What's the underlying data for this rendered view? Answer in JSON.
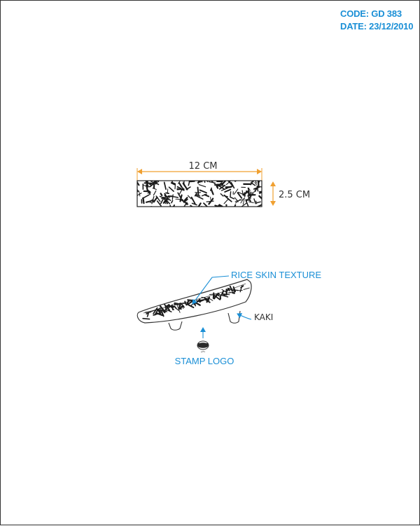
{
  "header": {
    "code": "CODE: GD 383",
    "date": "DATE: 23/12/2010"
  },
  "plan_view": {
    "width_label": "12 CM",
    "height_label": "2.5 CM"
  },
  "side_view": {
    "texture_label": "RICE SKIN TEXTURE",
    "material_label": "KAKI",
    "logo_label": "STAMP LOGO",
    "logo_mark_text": "gifts"
  },
  "colors": {
    "accent": "#1a8fd6",
    "dimension": "#f0a030",
    "line": "#333333"
  }
}
